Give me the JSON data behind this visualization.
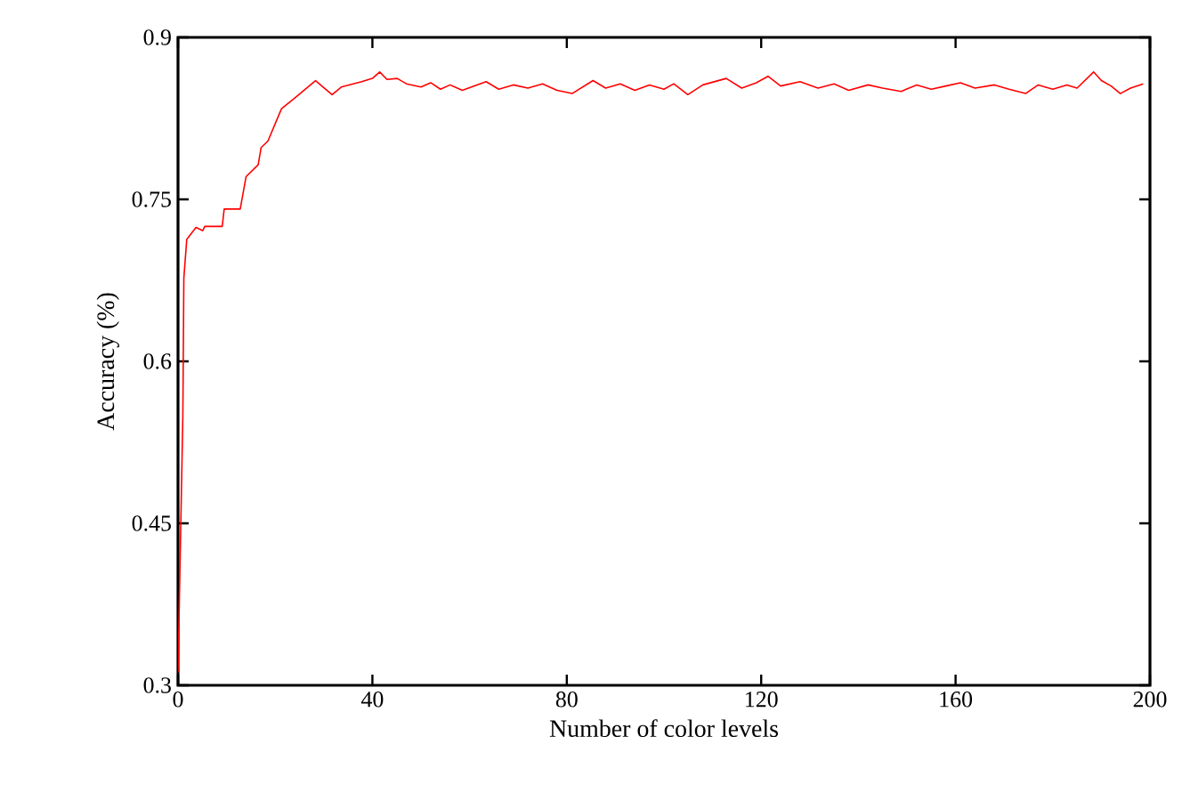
{
  "chart_data": {
    "type": "line",
    "xlabel": "Number of color levels",
    "ylabel": "Accuracy (%)",
    "xlim": [
      0,
      200
    ],
    "ylim": [
      0.3,
      0.9
    ],
    "xticks": [
      0,
      40,
      80,
      120,
      160,
      200
    ],
    "yticks": [
      0.3,
      0.45,
      0.6,
      0.75,
      0.9
    ],
    "marker": "none",
    "line_style": "solid",
    "series": [
      {
        "color": "#ff0000",
        "x": [
          0,
          1,
          1.2,
          1.8,
          3.7,
          5.1,
          5.5,
          9.1,
          9.5,
          12.8,
          14.0,
          16.5,
          17.1,
          18.5,
          21.3,
          23.8,
          28.3,
          31.7,
          33.6,
          37.8,
          40,
          41.5,
          43,
          45.1,
          47,
          50,
          52,
          54,
          56,
          58.5,
          61,
          63.4,
          66,
          69,
          72,
          75,
          78,
          81.1,
          85.4,
          88,
          91,
          94,
          97,
          100,
          102,
          104.9,
          108,
          112.8,
          116,
          119,
          121.4,
          124,
          128,
          131.7,
          135,
          138,
          142,
          145,
          148.8,
          152,
          155,
          158,
          161,
          164,
          168,
          171,
          174.4,
          177,
          180,
          182.9,
          185,
          188.4,
          190,
          192,
          193.9,
          196,
          198.6
        ],
        "values": [
          0.312,
          0.551,
          0.677,
          0.713,
          0.724,
          0.721,
          0.725,
          0.725,
          0.741,
          0.741,
          0.771,
          0.782,
          0.798,
          0.804,
          0.834,
          0.843,
          0.86,
          0.847,
          0.854,
          0.859,
          0.862,
          0.868,
          0.861,
          0.862,
          0.857,
          0.854,
          0.858,
          0.852,
          0.856,
          0.851,
          0.855,
          0.859,
          0.852,
          0.856,
          0.853,
          0.857,
          0.851,
          0.848,
          0.86,
          0.853,
          0.857,
          0.851,
          0.856,
          0.852,
          0.857,
          0.847,
          0.856,
          0.862,
          0.853,
          0.858,
          0.864,
          0.855,
          0.859,
          0.853,
          0.857,
          0.851,
          0.856,
          0.853,
          0.85,
          0.856,
          0.852,
          0.855,
          0.858,
          0.853,
          0.856,
          0.852,
          0.848,
          0.856,
          0.852,
          0.856,
          0.853,
          0.868,
          0.86,
          0.855,
          0.848,
          0.853,
          0.857
        ]
      }
    ]
  }
}
